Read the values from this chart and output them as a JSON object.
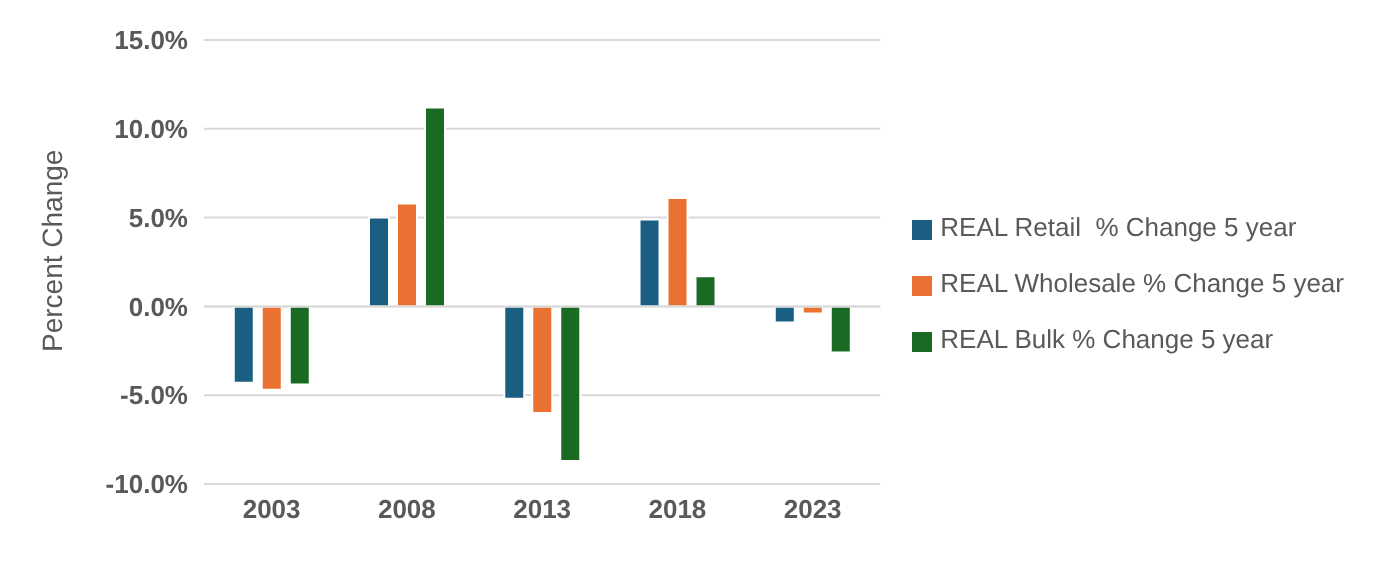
{
  "chart_data": {
    "type": "bar",
    "ylabel": "Percent Change",
    "categories": [
      "2003",
      "2008",
      "2013",
      "2018",
      "2023"
    ],
    "series": [
      {
        "name": "REAL Retail  % Change 5 year",
        "color": "#1a5e82",
        "values": [
          -4.3,
          5.0,
          -5.2,
          4.9,
          -0.9
        ]
      },
      {
        "name": "REAL Wholesale % Change 5 year",
        "color": "#e97132",
        "values": [
          -4.7,
          5.8,
          -6.0,
          6.1,
          -0.4
        ]
      },
      {
        "name": "REAL Bulk % Change 5 year",
        "color": "#196b24",
        "values": [
          -4.4,
          11.2,
          -8.7,
          1.7,
          -2.6
        ]
      }
    ],
    "ylim": [
      -10,
      15
    ],
    "yticks": [
      {
        "value": -10,
        "label": "-10.0%"
      },
      {
        "value": -5,
        "label": "-5.0%"
      },
      {
        "value": 0,
        "label": "0.0%"
      },
      {
        "value": 5,
        "label": "5.0%"
      },
      {
        "value": 10,
        "label": "10.0%"
      },
      {
        "value": 15,
        "label": "15.0%"
      }
    ],
    "grid": "y",
    "legend": "right"
  }
}
